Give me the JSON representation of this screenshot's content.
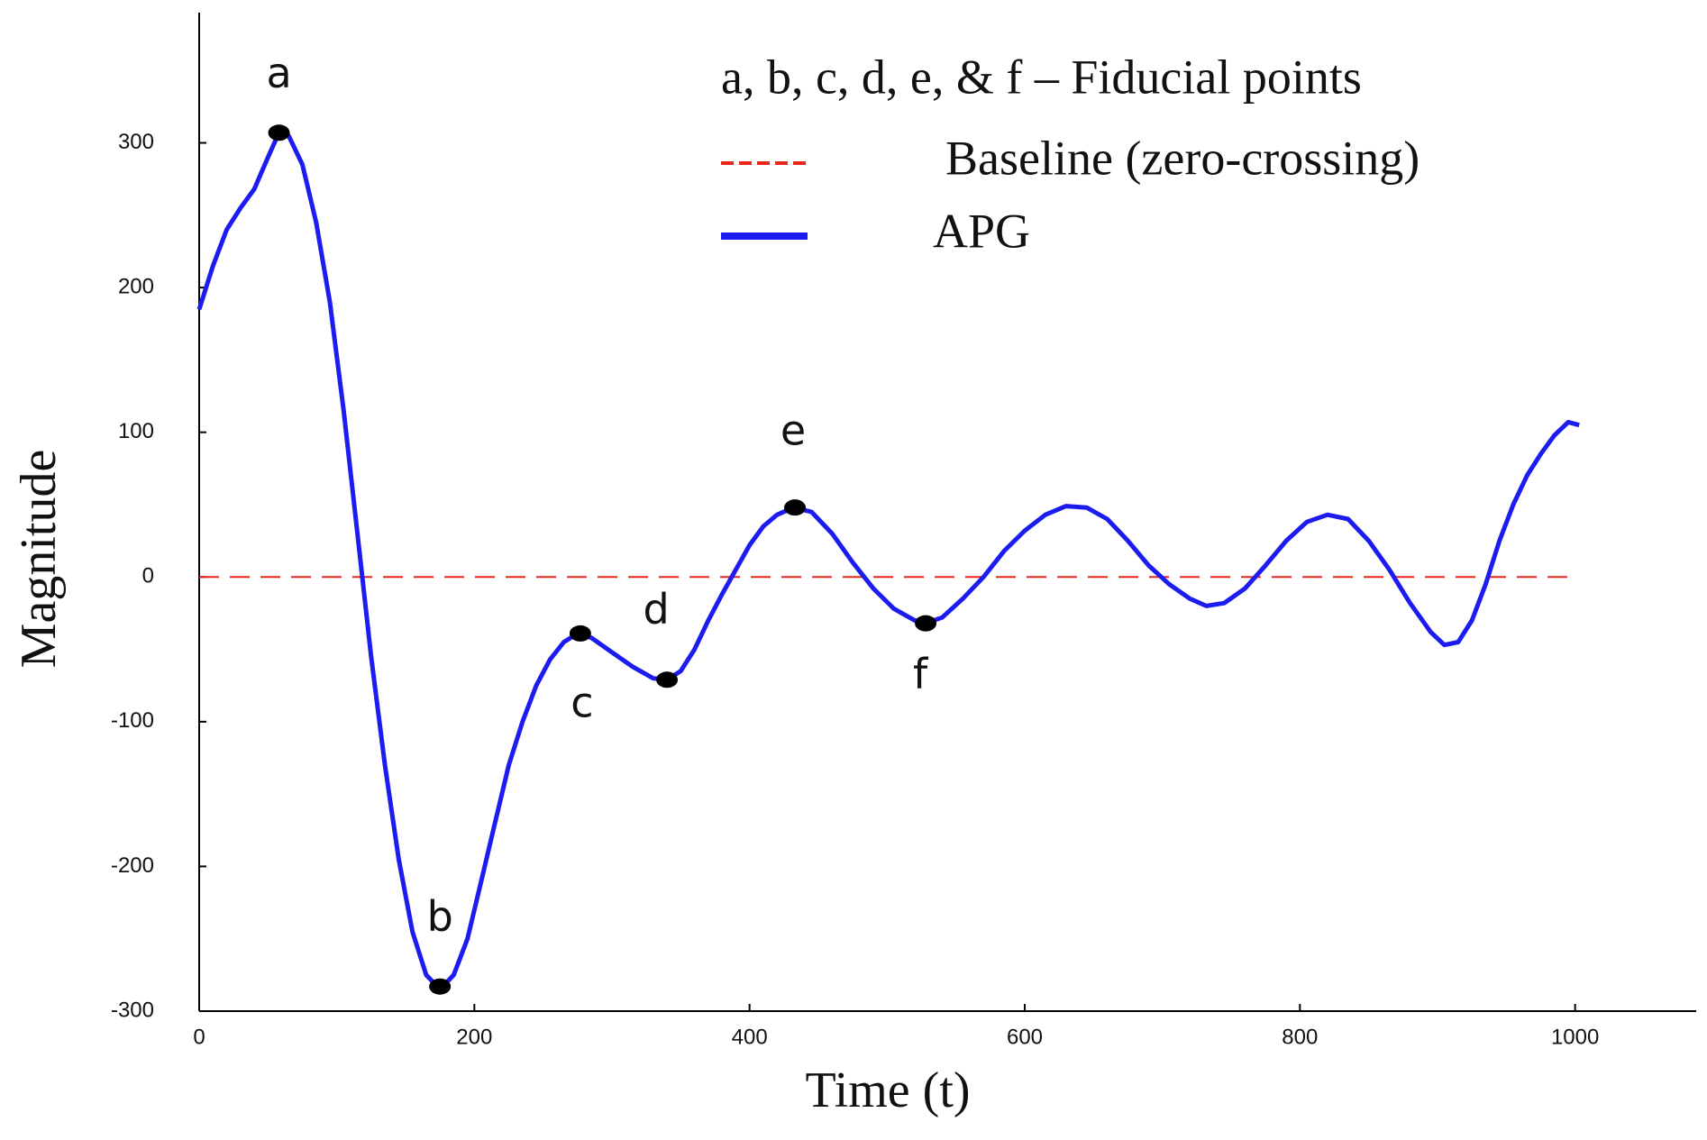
{
  "chart_data": {
    "type": "line",
    "xlabel": "Time (t)",
    "ylabel": "Magnitude",
    "xlim": [
      0,
      1088
    ],
    "ylim": [
      -300,
      390
    ],
    "xticks": [
      0,
      200,
      400,
      600,
      800,
      1000
    ],
    "yticks": [
      -300,
      -200,
      -100,
      0,
      100,
      200,
      300
    ],
    "legend_note": "a, b, c, d, e, & f – Fiducial points",
    "series": [
      {
        "name": "Baseline (zero-crossing)",
        "color": "#e8271c",
        "dashed": true,
        "x": [
          0,
          1000
        ],
        "values": [
          0,
          0
        ]
      },
      {
        "name": "APG",
        "color": "#1c1cf0",
        "dashed": false,
        "x": [
          0,
          10,
          20,
          30,
          40,
          50,
          58,
          65,
          75,
          85,
          95,
          105,
          115,
          125,
          135,
          145,
          155,
          165,
          175,
          185,
          195,
          205,
          215,
          225,
          235,
          245,
          255,
          265,
          275,
          285,
          300,
          315,
          330,
          340,
          350,
          360,
          370,
          380,
          390,
          400,
          410,
          420,
          432,
          445,
          460,
          475,
          490,
          505,
          520,
          528,
          540,
          555,
          570,
          585,
          600,
          615,
          630,
          645,
          660,
          675,
          690,
          705,
          720,
          732,
          745,
          760,
          775,
          790,
          805,
          820,
          835,
          850,
          865,
          880,
          895,
          905,
          915,
          925,
          935,
          945,
          955,
          965,
          975,
          985,
          995,
          1003
        ],
        "values": [
          185,
          215,
          240,
          255,
          268,
          290,
          307,
          305,
          285,
          245,
          190,
          115,
          30,
          -55,
          -130,
          -195,
          -245,
          -275,
          -285,
          -275,
          -250,
          -210,
          -170,
          -130,
          -100,
          -75,
          -57,
          -45,
          -39,
          -42,
          -52,
          -62,
          -70,
          -71,
          -65,
          -50,
          -30,
          -12,
          5,
          22,
          35,
          43,
          48,
          45,
          30,
          10,
          -8,
          -22,
          -30,
          -32,
          -28,
          -15,
          0,
          18,
          32,
          43,
          49,
          48,
          40,
          25,
          8,
          -5,
          -15,
          -20,
          -18,
          -8,
          8,
          25,
          38,
          43,
          40,
          25,
          5,
          -18,
          -38,
          -47,
          -45,
          -30,
          -5,
          25,
          50,
          70,
          85,
          98,
          107,
          105
        ]
      }
    ],
    "points": [
      {
        "label": "a",
        "x": 58,
        "y": 307
      },
      {
        "label": "b",
        "x": 175,
        "y": -283
      },
      {
        "label": "c",
        "x": 277,
        "y": -39
      },
      {
        "label": "d",
        "x": 340,
        "y": -71
      },
      {
        "label": "e",
        "x": 433,
        "y": 48
      },
      {
        "label": "f",
        "x": 528,
        "y": -32
      }
    ]
  }
}
